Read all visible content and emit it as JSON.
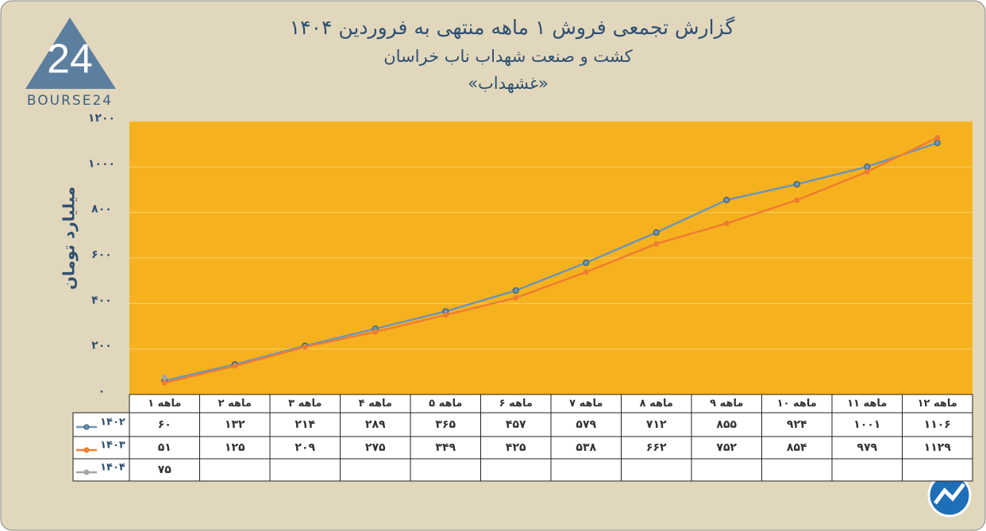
{
  "logo": {
    "mark": "24",
    "name": "BOURSE24"
  },
  "chart_data": {
    "type": "line",
    "title": "گزارش تجمعی فروش ۱ ماهه منتهی به فروردین ۱۴۰۴",
    "subtitle": "کشت و صنعت شهداب ناب خراسان",
    "symbol": "«غشهداب»",
    "y_label": "میلیارد تومان",
    "categories": [
      "۱ ماهه",
      "۲ ماهه",
      "۳ ماهه",
      "۴ ماهه",
      "۵ ماهه",
      "۶ ماهه",
      "۷ ماهه",
      "۸ ماهه",
      "۹ ماهه",
      "۱۰ ماهه",
      "۱۱ ماهه",
      "۱۲ ماهه"
    ],
    "series": [
      {
        "name": "۱۴۰۲",
        "color": "#6f95b4",
        "values": [
          60,
          132,
          214,
          289,
          365,
          457,
          579,
          712,
          855,
          924,
          1001,
          1106
        ],
        "value_labels": [
          "۶۰",
          "۱۳۲",
          "۲۱۴",
          "۲۸۹",
          "۳۶۵",
          "۴۵۷",
          "۵۷۹",
          "۷۱۲",
          "۸۵۵",
          "۹۲۴",
          "۱۰۰۱",
          "۱۱۰۶"
        ]
      },
      {
        "name": "۱۴۰۳",
        "color": "#ef7d31",
        "values": [
          51,
          125,
          209,
          275,
          349,
          425,
          538,
          662,
          752,
          854,
          979,
          1129
        ],
        "value_labels": [
          "۵۱",
          "۱۲۵",
          "۲۰۹",
          "۲۷۵",
          "۳۴۹",
          "۴۲۵",
          "۵۳۸",
          "۶۶۲",
          "۷۵۲",
          "۸۵۴",
          "۹۷۹",
          "۱۱۲۹"
        ]
      },
      {
        "name": "۱۴۰۴",
        "color": "#a5a5a5",
        "values": [
          75,
          null,
          null,
          null,
          null,
          null,
          null,
          null,
          null,
          null,
          null,
          null
        ],
        "value_labels": [
          "۷۵",
          null,
          null,
          null,
          null,
          null,
          null,
          null,
          null,
          null,
          null,
          null
        ]
      }
    ],
    "ylim": [
      0,
      1200
    ],
    "yticks": [
      {
        "value": 0,
        "label": "۰"
      },
      {
        "value": 200,
        "label": "۲۰۰"
      },
      {
        "value": 400,
        "label": "۴۰۰"
      },
      {
        "value": 600,
        "label": "۶۰۰"
      },
      {
        "value": 800,
        "label": "۸۰۰"
      },
      {
        "value": 1000,
        "label": "۱۰۰۰"
      },
      {
        "value": 1200,
        "label": "۱۲۰۰"
      }
    ],
    "grid": true,
    "plot_color": "#f5b21e"
  }
}
